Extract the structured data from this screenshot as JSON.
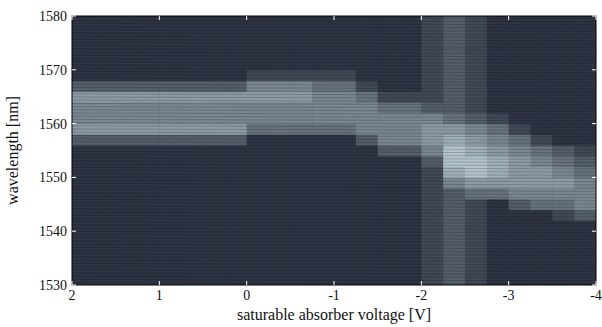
{
  "chart_data": {
    "type": "heatmap",
    "x_label": "saturable absorber voltage [V]",
    "y_label": "wavelength [nm]",
    "xlim": [
      2,
      -4
    ],
    "xticks": [
      2,
      1,
      0,
      -1,
      -2,
      -3,
      -4
    ],
    "ylim": [
      1530,
      1580
    ],
    "yticks": [
      1530,
      1540,
      1550,
      1560,
      1570,
      1580
    ],
    "grid": false,
    "zlim": [
      0,
      10
    ],
    "x": [
      1.875,
      1.625,
      1.375,
      1.125,
      0.875,
      0.625,
      0.375,
      0.125,
      -0.125,
      -0.375,
      -0.625,
      -0.875,
      -1.125,
      -1.375,
      -1.625,
      -1.875,
      -2.125,
      -2.375,
      -2.625,
      -2.875,
      -3.125,
      -3.375,
      -3.625,
      -3.875
    ],
    "y": [
      1531,
      1533,
      1535,
      1537,
      1539,
      1541,
      1543,
      1545,
      1547,
      1549,
      1551,
      1553,
      1555,
      1557,
      1559,
      1561,
      1563,
      1565,
      1567,
      1569,
      1571,
      1573,
      1575,
      1577,
      1579
    ],
    "cells": [
      [
        1,
        1,
        1,
        1,
        1,
        1,
        1,
        1,
        1,
        1,
        1,
        1,
        1,
        1,
        1,
        1,
        2,
        3,
        2,
        1,
        1,
        1,
        1,
        1
      ],
      [
        1,
        1,
        1,
        1,
        1,
        1,
        1,
        1,
        1,
        1,
        1,
        1,
        1,
        1,
        1,
        1,
        2,
        3,
        2,
        1,
        1,
        1,
        1,
        1
      ],
      [
        1,
        1,
        1,
        1,
        1,
        1,
        1,
        1,
        1,
        1,
        1,
        1,
        1,
        1,
        1,
        1,
        2,
        3,
        2,
        1,
        1,
        1,
        1,
        1
      ],
      [
        1,
        1,
        1,
        1,
        1,
        1,
        1,
        1,
        1,
        1,
        1,
        1,
        1,
        1,
        1,
        1,
        2,
        3,
        2,
        1,
        1,
        1,
        1,
        1
      ],
      [
        1,
        1,
        1,
        1,
        1,
        1,
        1,
        1,
        1,
        1,
        1,
        1,
        1,
        1,
        1,
        1,
        2,
        3,
        2,
        1,
        1,
        1,
        1,
        1
      ],
      [
        1,
        1,
        1,
        1,
        1,
        1,
        1,
        1,
        1,
        1,
        1,
        1,
        1,
        1,
        1,
        1,
        2,
        3,
        2,
        1,
        1,
        1,
        1,
        1
      ],
      [
        1,
        1,
        1,
        1,
        1,
        1,
        1,
        1,
        1,
        1,
        1,
        1,
        1,
        1,
        1,
        1,
        2,
        3,
        2,
        1,
        1,
        1,
        2,
        3
      ],
      [
        1,
        1,
        1,
        1,
        1,
        1,
        1,
        1,
        1,
        1,
        1,
        1,
        1,
        1,
        1,
        1,
        2,
        3,
        2,
        1,
        3,
        4,
        4,
        5
      ],
      [
        1,
        1,
        1,
        1,
        1,
        1,
        1,
        1,
        1,
        1,
        1,
        1,
        1,
        1,
        1,
        1,
        2,
        3,
        4,
        4,
        5,
        5,
        5,
        5
      ],
      [
        1,
        1,
        1,
        1,
        1,
        1,
        1,
        1,
        1,
        1,
        1,
        1,
        1,
        1,
        1,
        1,
        2,
        5,
        6,
        6,
        6,
        6,
        6,
        5
      ],
      [
        1,
        1,
        1,
        1,
        1,
        1,
        1,
        1,
        1,
        1,
        1,
        1,
        1,
        1,
        1,
        1,
        2,
        7,
        8,
        7,
        6,
        6,
        5,
        4
      ],
      [
        1,
        1,
        1,
        1,
        1,
        1,
        1,
        1,
        1,
        1,
        1,
        1,
        1,
        1,
        1,
        1,
        3,
        8,
        8,
        7,
        6,
        5,
        4,
        3
      ],
      [
        1,
        1,
        1,
        1,
        1,
        1,
        1,
        1,
        1,
        1,
        1,
        1,
        1,
        1,
        3,
        3,
        5,
        8,
        7,
        6,
        5,
        4,
        3,
        2
      ],
      [
        3,
        3,
        3,
        3,
        3,
        3,
        3,
        3,
        1,
        1,
        1,
        1,
        1,
        3,
        5,
        5,
        6,
        7,
        6,
        5,
        4,
        2,
        1,
        1
      ],
      [
        6,
        6,
        6,
        6,
        6,
        6,
        6,
        6,
        4,
        4,
        4,
        4,
        4,
        5,
        5,
        5,
        6,
        6,
        5,
        4,
        2,
        1,
        1,
        1
      ],
      [
        5,
        5,
        5,
        5,
        5,
        5,
        5,
        5,
        5,
        5,
        5,
        5,
        5,
        5,
        5,
        5,
        5,
        4,
        3,
        2,
        1,
        1,
        1,
        1
      ],
      [
        5,
        5,
        5,
        5,
        5,
        5,
        5,
        5,
        5,
        5,
        5,
        5,
        5,
        5,
        4,
        4,
        3,
        3,
        2,
        1,
        1,
        1,
        1,
        1
      ],
      [
        6,
        6,
        6,
        6,
        6,
        6,
        6,
        6,
        6,
        6,
        6,
        5,
        5,
        4,
        2,
        2,
        2,
        3,
        2,
        1,
        1,
        1,
        1,
        1
      ],
      [
        3,
        3,
        3,
        3,
        3,
        3,
        3,
        3,
        5,
        5,
        5,
        4,
        4,
        2,
        1,
        1,
        2,
        3,
        2,
        1,
        1,
        1,
        1,
        1
      ],
      [
        1,
        1,
        1,
        1,
        1,
        1,
        1,
        1,
        2,
        2,
        2,
        2,
        2,
        1,
        1,
        1,
        2,
        3,
        2,
        1,
        1,
        1,
        1,
        1
      ],
      [
        1,
        1,
        1,
        1,
        1,
        1,
        1,
        1,
        1,
        1,
        1,
        1,
        1,
        1,
        1,
        1,
        2,
        3,
        2,
        1,
        1,
        1,
        1,
        1
      ],
      [
        1,
        1,
        1,
        1,
        1,
        1,
        1,
        1,
        1,
        1,
        1,
        1,
        1,
        1,
        1,
        1,
        2,
        3,
        2,
        1,
        1,
        1,
        1,
        1
      ],
      [
        1,
        1,
        1,
        1,
        1,
        1,
        1,
        1,
        1,
        1,
        1,
        1,
        1,
        1,
        1,
        1,
        2,
        3,
        2,
        1,
        1,
        1,
        1,
        1
      ],
      [
        1,
        1,
        1,
        1,
        1,
        1,
        1,
        1,
        1,
        1,
        1,
        1,
        1,
        1,
        1,
        1,
        2,
        3,
        2,
        1,
        1,
        1,
        1,
        1
      ],
      [
        1,
        1,
        1,
        1,
        1,
        1,
        1,
        1,
        1,
        1,
        1,
        1,
        1,
        1,
        1,
        1,
        2,
        3,
        2,
        1,
        1,
        1,
        1,
        1
      ]
    ]
  }
}
